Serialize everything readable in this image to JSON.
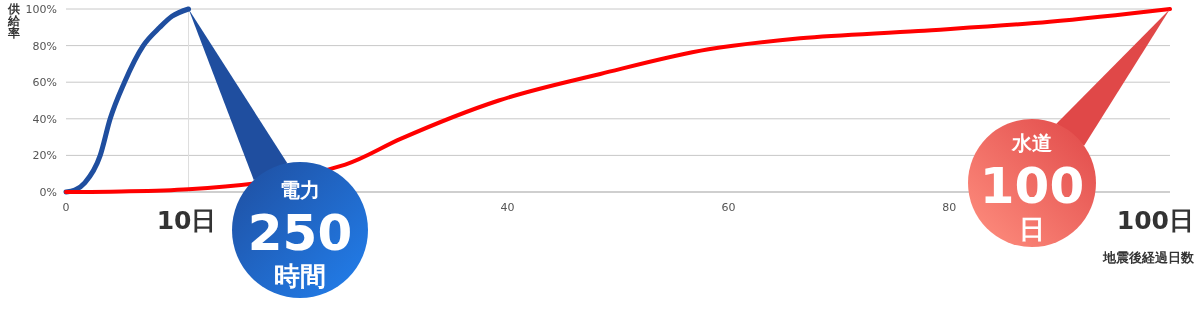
{
  "chart_data": {
    "type": "line",
    "ylabel": "供給率",
    "xlabel": "地震後経過日数",
    "xlim": [
      0,
      100
    ],
    "xticks": [
      0,
      40,
      60,
      80
    ],
    "ylim": [
      0,
      100
    ],
    "yticks": [
      {
        "value": 0,
        "label": "0%"
      },
      {
        "value": 20,
        "label": "20%"
      },
      {
        "value": 40,
        "label": "40%"
      },
      {
        "value": 60,
        "label": "60%"
      },
      {
        "value": 80,
        "label": "80%"
      },
      {
        "value": 100,
        "label": "100%"
      }
    ],
    "grid": "y",
    "line_style": "solid",
    "marker": "none",
    "series": [
      {
        "color": "#1f4e9f",
        "x": [
          0,
          0.8,
          1.7,
          3.1,
          4.0,
          5.3,
          7.0,
          8.5,
          9.6,
          11.1
        ],
        "values": [
          0,
          1,
          5,
          20,
          40,
          60,
          80,
          90,
          96,
          100
        ]
      },
      {
        "color": "#ff0000",
        "x": [
          0,
          5,
          11.1,
          25.3,
          30.3,
          39.2,
          48.4,
          58.2,
          66.5,
          77.2,
          89.1,
          100
        ],
        "values": [
          0,
          0.3,
          1.5,
          15,
          29,
          50,
          64.5,
          78,
          84,
          88,
          93,
          100
        ]
      }
    ],
    "ref_lines": [
      {
        "axis": "x",
        "value": 11.1,
        "label": "10日",
        "color": "#dddddd"
      }
    ],
    "annotations": [
      "電力 250 時間",
      "水道 100 日",
      "100日"
    ]
  }
}
